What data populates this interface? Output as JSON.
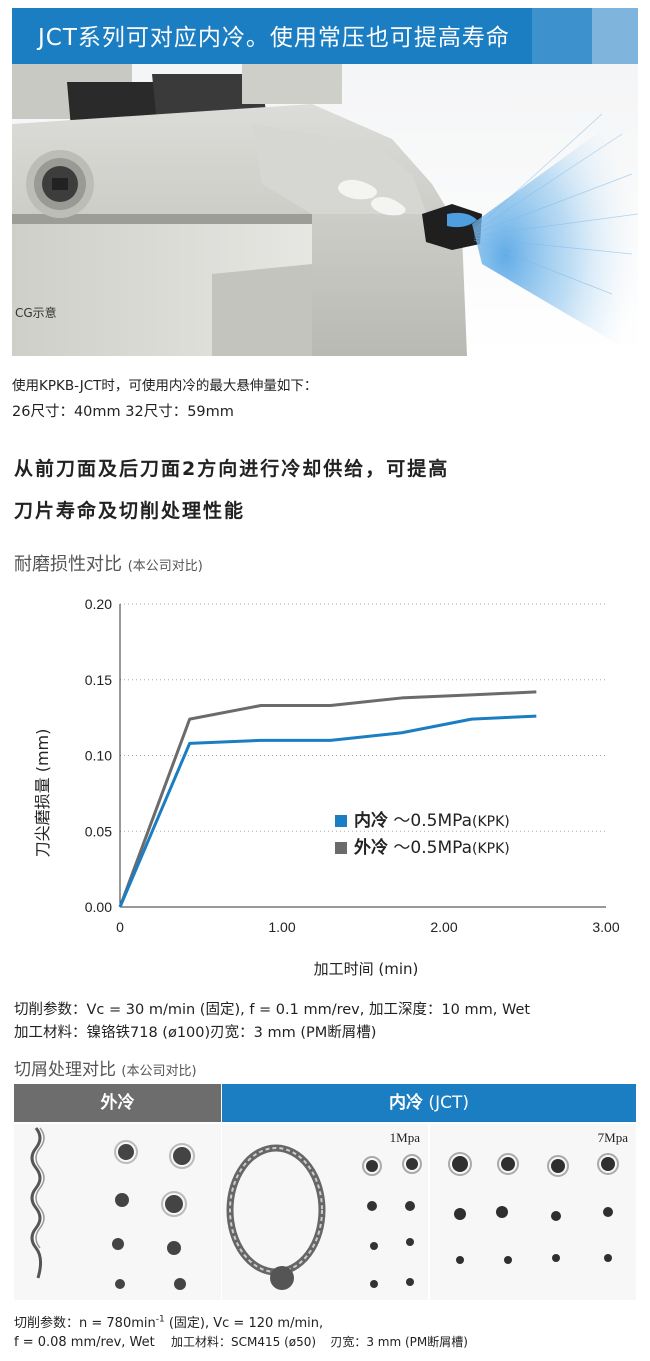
{
  "banner": {
    "title": "JCT系列可对应内冷。使用常压也可提高寿命"
  },
  "hero": {
    "caption": "CG示意"
  },
  "overhang": {
    "line1": "使用KPKB-JCT时，可使用内冷的最大悬伸量如下：",
    "line2": "26尺寸：40mm  32尺寸：59mm"
  },
  "headline": {
    "line1": "从前刀面及后刀面2方向进行冷却供给，可提高",
    "line2": "刀片寿命及切削处理性能"
  },
  "wear_section": {
    "title": "耐磨损性对比",
    "subtitle": "(本公司对比)"
  },
  "chart_data": {
    "type": "line",
    "title": "",
    "xlabel": "加工时间 (min)",
    "ylabel": "刀尖磨损量 (mm)",
    "xlim": [
      0,
      3.0
    ],
    "ylim": [
      0,
      0.2
    ],
    "xticks": [
      "0",
      "1.00",
      "2.00",
      "3.00"
    ],
    "yticks": [
      "0.00",
      "0.05",
      "0.10",
      "0.15",
      "0.20"
    ],
    "grid": "horizontal-dotted",
    "legend_position": "bottom-right",
    "series": [
      {
        "name": "外冷",
        "legend_bold": "外冷",
        "legend_rest": " ～0.5MPa",
        "legend_tail": "(KPK)",
        "color": "#6b6b6b",
        "x": [
          0,
          0.43,
          0.87,
          1.3,
          1.74,
          2.17,
          2.57
        ],
        "y": [
          0,
          0.124,
          0.133,
          0.133,
          0.138,
          0.14,
          0.142
        ]
      },
      {
        "name": "内冷",
        "legend_bold": "内冷",
        "legend_rest": " ～0.5MPa",
        "legend_tail": "(KPK)",
        "color": "#1b7ec2",
        "x": [
          0,
          0.43,
          0.87,
          1.3,
          1.74,
          2.17,
          2.57
        ],
        "y": [
          0,
          0.108,
          0.11,
          0.11,
          0.115,
          0.124,
          0.126
        ]
      }
    ]
  },
  "cutting_params": {
    "line1": "切削参数：Vc = 30 m/min (固定), f = 0.1 mm/rev, 加工深度：10 mm, Wet",
    "line2": "加工材料：镍铬铁718 (ø100)刃宽：3 mm (PM断屑槽)"
  },
  "chip_section": {
    "title": "切屑处理对比",
    "subtitle": "(本公司对比)",
    "col_external": "外冷",
    "col_internal_bold": "内冷",
    "col_internal_rest": " (JCT)",
    "photo_label_1": "1Mpa",
    "photo_label_2": "7Mpa"
  },
  "footnote": {
    "line1_a": "切削参数：n = 780min",
    "line1_sup": "-1",
    "line1_b": " (固定), Vc = 120 m/min,",
    "line2_a": "f = 0.08 mm/rev, Wet",
    "line2_b": "加工材料：SCM415 (ø50)",
    "line2_c": "刃宽：3 mm (PM断屑槽)"
  },
  "colors": {
    "brand_blue": "#1b7ec2",
    "external_gray": "#6b6b6b"
  }
}
